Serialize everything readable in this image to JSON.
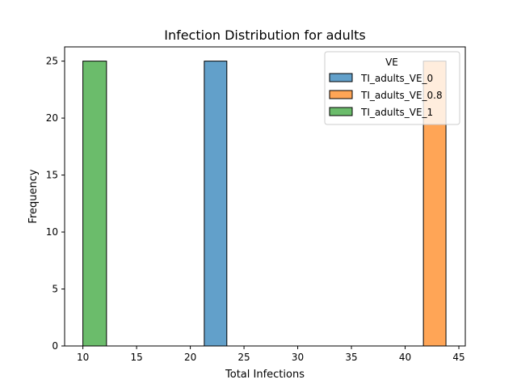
{
  "chart_data": {
    "type": "bar",
    "title": "Infection Distribution for adults",
    "xlabel": "Total Infections",
    "ylabel": "Frequency",
    "xlim": [
      8.3,
      45.6
    ],
    "ylim": [
      0,
      26.25
    ],
    "xticks": [
      10,
      15,
      20,
      25,
      30,
      35,
      40,
      45
    ],
    "yticks": [
      0,
      5,
      10,
      15,
      20,
      25
    ],
    "grid": false,
    "legend": {
      "title": "VE",
      "placement": "top-right"
    },
    "series": [
      {
        "name": "TI_adults_VE_0",
        "color": "#1f77b4",
        "bins": [
          {
            "x0": 21.3,
            "x1": 23.4,
            "count": 25
          }
        ]
      },
      {
        "name": "TI_adults_VE_0.8",
        "color": "#ff7f0e",
        "bins": [
          {
            "x0": 41.7,
            "x1": 43.8,
            "count": 25
          }
        ]
      },
      {
        "name": "TI_adults_VE_1",
        "color": "#2ca02c",
        "bins": [
          {
            "x0": 10.0,
            "x1": 12.2,
            "count": 25
          }
        ]
      }
    ]
  }
}
